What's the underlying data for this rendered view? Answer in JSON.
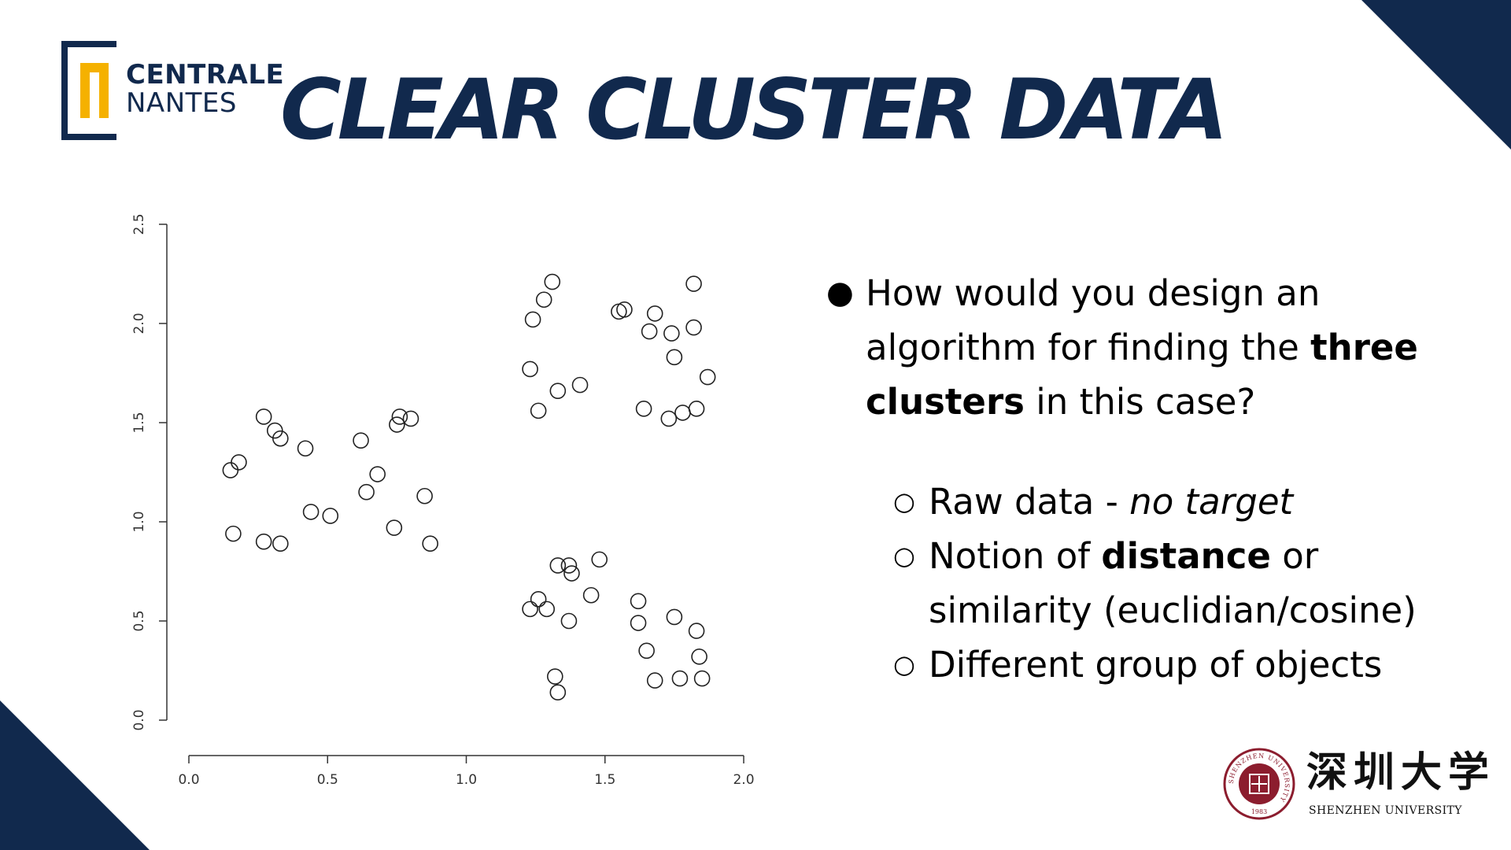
{
  "colors": {
    "navy": "#11294d",
    "gold": "#f5b100",
    "seal": "#8c1d2e"
  },
  "logo": {
    "line1": "CENTRALE",
    "line2": "NANTES"
  },
  "title": "CLEAR CLUSTER DATA",
  "chart_data": {
    "type": "scatter",
    "title": "",
    "xlabel": "",
    "ylabel": "",
    "xlim": [
      0,
      2
    ],
    "ylim": [
      0,
      2.5
    ],
    "x_ticks": [
      "0.0",
      "0.5",
      "1.0",
      "1.5",
      "2.0"
    ],
    "y_ticks": [
      "0.0",
      "0.5",
      "1.0",
      "1.5",
      "2.0",
      "2.5"
    ],
    "marker": "open-circle",
    "points": [
      [
        0.15,
        1.26
      ],
      [
        0.18,
        1.3
      ],
      [
        0.16,
        0.94
      ],
      [
        0.27,
        1.53
      ],
      [
        0.31,
        1.46
      ],
      [
        0.33,
        1.42
      ],
      [
        0.27,
        0.9
      ],
      [
        0.33,
        0.89
      ],
      [
        0.42,
        1.37
      ],
      [
        0.44,
        1.05
      ],
      [
        0.51,
        1.03
      ],
      [
        0.62,
        1.41
      ],
      [
        0.64,
        1.15
      ],
      [
        0.68,
        1.24
      ],
      [
        0.74,
        0.97
      ],
      [
        0.75,
        1.49
      ],
      [
        0.76,
        1.53
      ],
      [
        0.8,
        1.52
      ],
      [
        0.85,
        1.13
      ],
      [
        0.87,
        0.89
      ],
      [
        1.31,
        2.21
      ],
      [
        1.28,
        2.12
      ],
      [
        1.24,
        2.02
      ],
      [
        1.23,
        1.77
      ],
      [
        1.26,
        1.56
      ],
      [
        1.33,
        1.66
      ],
      [
        1.41,
        1.69
      ],
      [
        1.55,
        2.06
      ],
      [
        1.57,
        2.07
      ],
      [
        1.68,
        2.05
      ],
      [
        1.66,
        1.96
      ],
      [
        1.74,
        1.95
      ],
      [
        1.82,
        1.98
      ],
      [
        1.82,
        2.2
      ],
      [
        1.75,
        1.83
      ],
      [
        1.87,
        1.73
      ],
      [
        1.64,
        1.57
      ],
      [
        1.73,
        1.52
      ],
      [
        1.78,
        1.55
      ],
      [
        1.83,
        1.57
      ],
      [
        1.23,
        0.56
      ],
      [
        1.26,
        0.61
      ],
      [
        1.29,
        0.56
      ],
      [
        1.33,
        0.78
      ],
      [
        1.37,
        0.78
      ],
      [
        1.38,
        0.74
      ],
      [
        1.37,
        0.5
      ],
      [
        1.45,
        0.63
      ],
      [
        1.48,
        0.81
      ],
      [
        1.32,
        0.22
      ],
      [
        1.33,
        0.14
      ],
      [
        1.62,
        0.6
      ],
      [
        1.62,
        0.49
      ],
      [
        1.65,
        0.35
      ],
      [
        1.68,
        0.2
      ],
      [
        1.75,
        0.52
      ],
      [
        1.77,
        0.21
      ],
      [
        1.83,
        0.45
      ],
      [
        1.84,
        0.32
      ],
      [
        1.85,
        0.21
      ]
    ]
  },
  "bullets": {
    "main_prefix": "How would you design an algorithm for finding the ",
    "main_bold": "three clusters",
    "main_suffix": " in this case?",
    "sub1_prefix": "Raw data - ",
    "sub1_italic": "no target",
    "sub2_prefix": "Notion of ",
    "sub2_bold": "distance",
    "sub2_suffix": " or similarity (euclidian/cosine)",
    "sub3": "Different group of objects"
  },
  "szu": {
    "cn": "深圳大学",
    "en": "SHENZHEN UNIVERSITY",
    "seal_text": "SHENZHEN UNIVERSITY",
    "seal_year": "1983"
  }
}
